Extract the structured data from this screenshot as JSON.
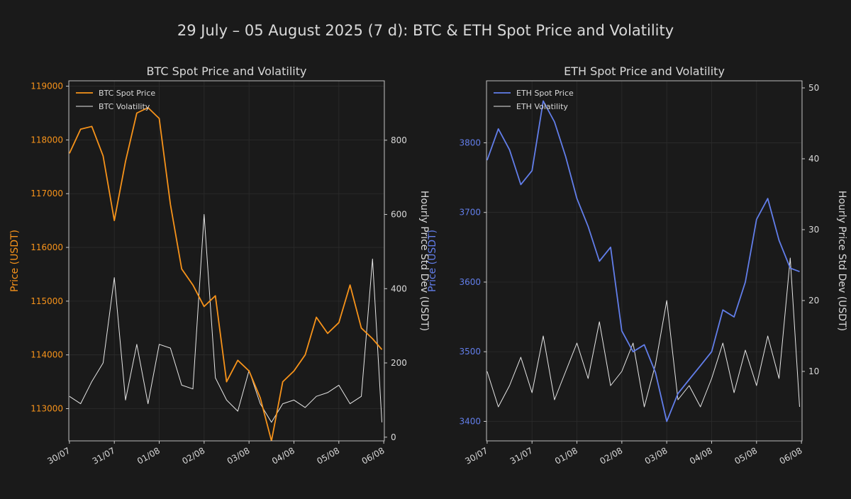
{
  "page": {
    "title": "29 July – 05 August 2025 (7 d): BTC & ETH Spot Price and Volatility"
  },
  "colors": {
    "background": "#1a1a1a",
    "btc": "#f7931a",
    "eth": "#627eea",
    "volatility": "#e6e6e6",
    "text": "#d9d9d9"
  },
  "chart_data": [
    {
      "type": "line",
      "title": "BTC Spot Price and Volatility",
      "xlabel": "",
      "ylabel": "Price (USDT)",
      "y2label": "Hourly Price Std Dev (USDT)",
      "x_ticks": [
        "30/07",
        "31/07",
        "01/08",
        "02/08",
        "03/08",
        "04/08",
        "05/08",
        "06/08"
      ],
      "xlim": [
        "2025-07-29T23:40",
        "2025-08-06T00:20"
      ],
      "ylim": [
        112400,
        119100
      ],
      "y_ticks": [
        113000,
        114000,
        115000,
        116000,
        117000,
        118000,
        119000
      ],
      "y2lim": [
        -10,
        960
      ],
      "y2_ticks": [
        0,
        200,
        400,
        600,
        800
      ],
      "grid": true,
      "legend": "top-left",
      "x": [
        "2025-07-30T00:00",
        "2025-07-30T06:00",
        "2025-07-30T12:00",
        "2025-07-30T18:00",
        "2025-07-31T00:00",
        "2025-07-31T06:00",
        "2025-07-31T12:00",
        "2025-07-31T18:00",
        "2025-08-01T00:00",
        "2025-08-01T06:00",
        "2025-08-01T12:00",
        "2025-08-01T18:00",
        "2025-08-02T00:00",
        "2025-08-02T06:00",
        "2025-08-02T12:00",
        "2025-08-02T18:00",
        "2025-08-03T00:00",
        "2025-08-03T06:00",
        "2025-08-03T12:00",
        "2025-08-03T18:00",
        "2025-08-04T00:00",
        "2025-08-04T06:00",
        "2025-08-04T12:00",
        "2025-08-04T18:00",
        "2025-08-05T00:00",
        "2025-08-05T06:00",
        "2025-08-05T12:00",
        "2025-08-05T18:00",
        "2025-08-05T23:00"
      ],
      "series": [
        {
          "name": "BTC Spot Price",
          "axis": "left",
          "color": "#f7931a",
          "values": [
            117750,
            118200,
            118250,
            117700,
            116500,
            117600,
            118500,
            118600,
            118400,
            116800,
            115600,
            115300,
            114900,
            115100,
            113500,
            113900,
            113700,
            113200,
            112400,
            113500,
            113700,
            114000,
            114700,
            114400,
            114600,
            115300,
            114500,
            114300,
            114100
          ]
        },
        {
          "name": "BTC Volatility",
          "axis": "right",
          "color": "#e6e6e6",
          "values": [
            110,
            90,
            150,
            200,
            430,
            100,
            250,
            90,
            250,
            240,
            140,
            130,
            600,
            160,
            100,
            70,
            180,
            90,
            40,
            90,
            100,
            80,
            110,
            120,
            140,
            90,
            110,
            480,
            40
          ]
        }
      ]
    },
    {
      "type": "line",
      "title": "ETH Spot Price and Volatility",
      "xlabel": "",
      "ylabel": "Price (USDT)",
      "y2label": "Hourly Price Std Dev (USDT)",
      "x_ticks": [
        "30/07",
        "31/07",
        "01/08",
        "02/08",
        "03/08",
        "04/08",
        "05/08",
        "06/08"
      ],
      "xlim": [
        "2025-07-29T23:40",
        "2025-08-06T00:20"
      ],
      "ylim": [
        3372,
        3889
      ],
      "y_ticks": [
        3400,
        3500,
        3600,
        3700,
        3800
      ],
      "y2lim": [
        0.2,
        51
      ],
      "y2_ticks": [
        10,
        20,
        30,
        40,
        50
      ],
      "grid": true,
      "legend": "top-left",
      "x": [
        "2025-07-30T00:00",
        "2025-07-30T06:00",
        "2025-07-30T12:00",
        "2025-07-30T18:00",
        "2025-07-31T00:00",
        "2025-07-31T06:00",
        "2025-07-31T12:00",
        "2025-07-31T18:00",
        "2025-08-01T00:00",
        "2025-08-01T06:00",
        "2025-08-01T12:00",
        "2025-08-01T18:00",
        "2025-08-02T00:00",
        "2025-08-02T06:00",
        "2025-08-02T12:00",
        "2025-08-02T18:00",
        "2025-08-03T00:00",
        "2025-08-03T06:00",
        "2025-08-03T12:00",
        "2025-08-03T18:00",
        "2025-08-04T00:00",
        "2025-08-04T06:00",
        "2025-08-04T12:00",
        "2025-08-04T18:00",
        "2025-08-05T00:00",
        "2025-08-05T06:00",
        "2025-08-05T12:00",
        "2025-08-05T18:00",
        "2025-08-05T23:00"
      ],
      "series": [
        {
          "name": "ETH Spot Price",
          "axis": "left",
          "color": "#627eea",
          "values": [
            3775,
            3820,
            3790,
            3740,
            3760,
            3860,
            3830,
            3780,
            3720,
            3680,
            3630,
            3650,
            3530,
            3500,
            3510,
            3470,
            3400,
            3440,
            3460,
            3480,
            3500,
            3560,
            3550,
            3600,
            3690,
            3720,
            3660,
            3620,
            3615
          ]
        },
        {
          "name": "ETH Volatility",
          "axis": "right",
          "color": "#e6e6e6",
          "values": [
            10,
            5,
            8,
            12,
            7,
            15,
            6,
            10,
            14,
            9,
            17,
            8,
            10,
            14,
            5,
            11,
            20,
            6,
            8,
            5,
            9,
            14,
            7,
            13,
            8,
            15,
            9,
            26,
            5
          ]
        }
      ]
    }
  ]
}
